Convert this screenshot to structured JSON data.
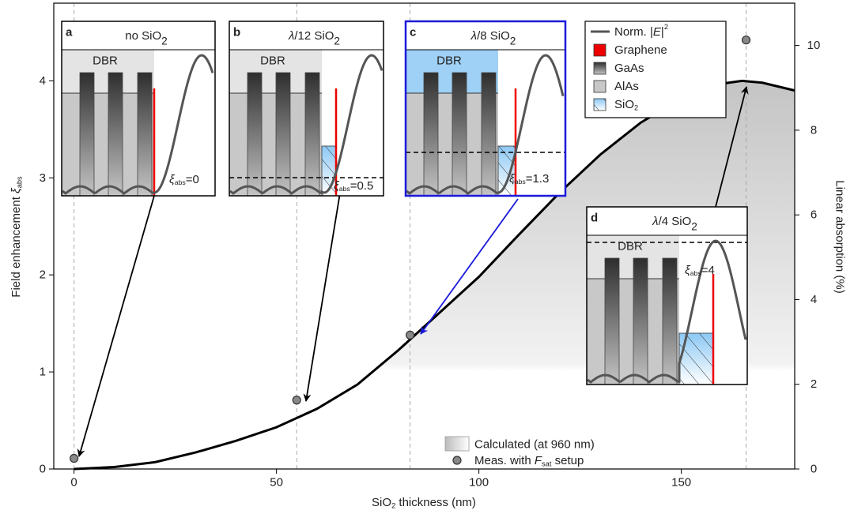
{
  "chart_data": {
    "type": "line",
    "x_label": [
      "SiO",
      "2",
      " thickness (nm)"
    ],
    "y_label": [
      "Field enhancement ",
      "ξ",
      "abs"
    ],
    "y2_label": "Linear absorption (%)",
    "xlim": [
      -5,
      178
    ],
    "xticks": [
      0,
      50,
      100,
      150
    ],
    "ylim": [
      0,
      4.8
    ],
    "yticks": [
      0,
      1,
      2,
      3,
      4
    ],
    "y2lim": [
      0,
      11
    ],
    "y2ticks": [
      0,
      2,
      4,
      6,
      8,
      10
    ],
    "series": [
      {
        "name": "Calculated (at 960 nm)",
        "color": "#000000",
        "x": [
          0,
          10,
          20,
          30,
          40,
          50,
          60,
          70,
          80,
          90,
          100,
          110,
          120,
          130,
          140,
          150,
          160,
          165,
          170,
          178
        ],
        "values": [
          0,
          0.02,
          0.07,
          0.17,
          0.29,
          0.43,
          0.62,
          0.87,
          1.22,
          1.6,
          1.98,
          2.42,
          2.85,
          3.24,
          3.57,
          3.82,
          3.97,
          4.0,
          3.98,
          3.9
        ]
      },
      {
        "name": [
          "Meas. with ",
          "F",
          "sat",
          " setup"
        ],
        "color": "#888888",
        "x": [
          0,
          55,
          83,
          166
        ],
        "values": [
          0.11,
          0.71,
          1.38,
          4.42
        ]
      }
    ],
    "insets": [
      {
        "letter": "a",
        "title": [
          "no SiO",
          "2"
        ],
        "xi": [
          "ξ",
          "abs",
          "=0"
        ]
      },
      {
        "letter": "b",
        "title": [
          "λ",
          "/12 SiO",
          "2"
        ],
        "xi": [
          "ξ",
          "abs",
          "=0.5"
        ]
      },
      {
        "letter": "c",
        "title": [
          "λ",
          "/8 SiO",
          "2"
        ],
        "xi": [
          "ξ",
          "abs",
          "=1.3"
        ]
      },
      {
        "letter": "d",
        "title": [
          "λ",
          "/4 SiO",
          "2"
        ],
        "xi": [
          "ξ",
          "abs",
          "=4"
        ]
      }
    ],
    "dbr_label": "DBR",
    "inset_legend": [
      [
        "Norm. |",
        "E",
        "|",
        "2"
      ],
      [
        "Graphene"
      ],
      [
        "GaAs"
      ],
      [
        "AlAs"
      ],
      [
        "SiO",
        "2"
      ]
    ]
  }
}
